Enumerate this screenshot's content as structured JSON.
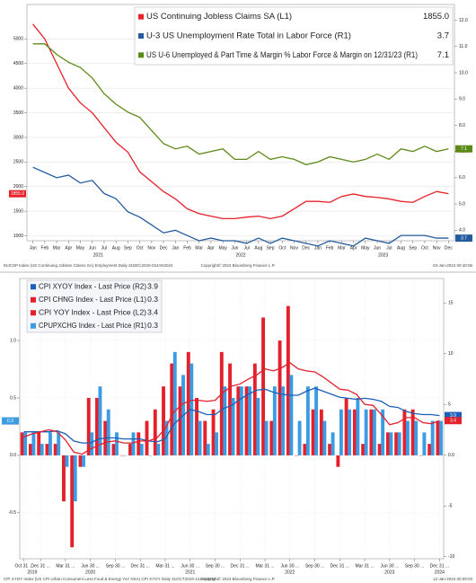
{
  "chart_data": [
    {
      "type": "line",
      "categories": [
        "Jan",
        "Feb",
        "Mar",
        "Apr",
        "May",
        "Jun",
        "Jul",
        "Aug",
        "Sep",
        "Oct",
        "Nov",
        "Dec",
        "Jan",
        "Feb",
        "Mar",
        "Apr",
        "May",
        "Jun",
        "Jul",
        "Aug",
        "Sep",
        "Oct",
        "Nov",
        "Dec",
        "Jan",
        "Feb",
        "Mar",
        "Apr",
        "May",
        "Jun",
        "Jul",
        "Aug",
        "Sep",
        "Oct",
        "Nov",
        "Dec"
      ],
      "year_labels": [
        "2021",
        "2022",
        "2023"
      ],
      "series": [
        {
          "name": "US Continuing Jobless Claims SA (L1)",
          "legend_value": "1855.0",
          "color": "#e8202a",
          "axis": "y",
          "values": [
            5300,
            5000,
            4500,
            4000,
            3700,
            3500,
            3200,
            2900,
            2700,
            2300,
            2100,
            1900,
            1750,
            1550,
            1450,
            1400,
            1350,
            1350,
            1380,
            1400,
            1350,
            1400,
            1550,
            1700,
            1700,
            1680,
            1800,
            1850,
            1800,
            1780,
            1750,
            1700,
            1680,
            1800,
            1900,
            1855
          ]
        },
        {
          "name": "U-3 US Unemployment Rate Total in Labor Force (R1)",
          "legend_value": "3.7",
          "color": "#245b9e",
          "axis": "y2",
          "values": [
            6.4,
            6.2,
            6.0,
            6.1,
            5.8,
            5.9,
            5.4,
            5.2,
            4.7,
            4.5,
            4.2,
            3.9,
            4.0,
            3.8,
            3.6,
            3.7,
            3.6,
            3.6,
            3.5,
            3.7,
            3.5,
            3.7,
            3.6,
            3.5,
            3.4,
            3.6,
            3.5,
            3.4,
            3.7,
            3.6,
            3.5,
            3.8,
            3.8,
            3.8,
            3.7,
            3.7
          ]
        },
        {
          "name": "US U-6 Unemployed & Part Time & Margin % Labor Force & Margin on 12/31/23 (R1)",
          "legend_value": "7.1",
          "color": "#5d8a17",
          "axis": "y2",
          "values": [
            11.1,
            11.1,
            10.7,
            10.4,
            10.2,
            9.8,
            9.2,
            8.8,
            8.5,
            8.3,
            7.8,
            7.3,
            7.1,
            7.2,
            6.9,
            7.0,
            7.1,
            6.7,
            6.7,
            7.0,
            6.7,
            6.8,
            6.7,
            6.5,
            6.6,
            6.8,
            6.7,
            6.6,
            6.7,
            6.9,
            6.7,
            7.1,
            7.0,
            7.2,
            7.0,
            7.1
          ]
        }
      ],
      "ylim": [
        900,
        5700
      ],
      "yticks": [
        1000,
        1500,
        2000,
        2500,
        3000,
        3500,
        4000,
        4500,
        5000
      ],
      "y2lim": [
        3.6,
        12.6
      ],
      "y2ticks": [
        {
          "value": 4,
          "label": "4.0"
        },
        {
          "value": 5,
          "label": "5.0"
        },
        {
          "value": 6,
          "label": "6.0"
        },
        {
          "value": 7,
          "label": "7.0"
        },
        {
          "value": 8,
          "label": "8.0"
        },
        {
          "value": 9,
          "label": "9.0"
        },
        {
          "value": 10,
          "label": "10.0"
        },
        {
          "value": 11,
          "label": "11.0"
        },
        {
          "value": 12,
          "label": "12.0"
        }
      ],
      "grid": true,
      "footer": [
        "INJCSP Index (US Continuing Jobless Claims SA) Employment Daily 31DEC2020-03JAN2024",
        "Copyright© 2024 Bloomberg Finance L.P.",
        "03-Jan-2024 00:40:06"
      ]
    },
    {
      "type": "combo",
      "categories": [
        "Oct 31 ...",
        null,
        "Dec 31 ...",
        null,
        null,
        "Mar 31 ...",
        null,
        null,
        "Jun 30 ...",
        null,
        null,
        "Sep 30 ...",
        null,
        null,
        "Dec 31 ...",
        null,
        null,
        "Mar 31 ...",
        null,
        null,
        "Jun 30 ...",
        null,
        null,
        "Sep 30 ...",
        null,
        null,
        "Dec 31 ...",
        null,
        null,
        "Mar 31 ...",
        null,
        null,
        "Jun 30 ...",
        null,
        null,
        "Sep 30 ...",
        null,
        null,
        "Dec 31 ...",
        null,
        null,
        "Mar 31 ...",
        null,
        null,
        "Jun 30 ...",
        null,
        null,
        "Sep 30 ...",
        null,
        null,
        "Dec 31 ..."
      ],
      "year_labels": [
        "2019",
        "2020",
        "2021",
        "2022",
        "2023",
        "2024"
      ],
      "series": [
        {
          "name": "CPI XYOY Index - Last Price (R2)",
          "legend_value": "3.9",
          "color": "#1c5fb8",
          "axis": "y2",
          "kind": "line",
          "values": [
            2.3,
            2.3,
            2.3,
            2.3,
            2.4,
            2.1,
            1.4,
            1.2,
            1.2,
            1.6,
            1.7,
            1.7,
            1.6,
            1.6,
            1.6,
            1.4,
            1.3,
            1.6,
            3.0,
            3.8,
            4.5,
            4.3,
            4.0,
            4.0,
            4.6,
            4.9,
            5.5,
            6.0,
            6.4,
            6.5,
            6.2,
            6.0,
            5.9,
            5.9,
            6.3,
            6.6,
            6.3,
            6.0,
            5.7,
            5.6,
            5.5,
            5.6,
            5.5,
            5.3,
            4.8,
            4.7,
            4.3,
            4.1,
            4.0,
            4.0,
            3.9
          ]
        },
        {
          "name": "CPI CHNG Index - Last Price (L1)",
          "legend_value": "0.3",
          "color": "#e3202b",
          "axis": "y",
          "kind": "bar",
          "values": [
            0.2,
            0.1,
            0.2,
            0.1,
            0.1,
            -0.4,
            -0.8,
            -0.1,
            0.5,
            0.5,
            0.3,
            0.1,
            0.0,
            0.1,
            0.2,
            0.3,
            0.4,
            0.6,
            0.8,
            0.6,
            0.9,
            0.5,
            0.3,
            0.4,
            0.9,
            0.8,
            0.6,
            0.6,
            0.8,
            1.2,
            0.3,
            1.0,
            1.3,
            0.0,
            0.1,
            0.4,
            0.4,
            0.1,
            -0.1,
            0.5,
            0.4,
            0.1,
            0.4,
            0.1,
            0.2,
            0.2,
            0.4,
            0.4,
            0.0,
            0.1,
            0.3
          ]
        },
        {
          "name": "CPI YOY Index - Last Price (L2)",
          "legend_value": "3.4",
          "color": "#e3202b",
          "axis": "y2",
          "kind": "line",
          "values": [
            1.8,
            2.1,
            2.3,
            2.5,
            2.3,
            1.5,
            0.3,
            0.1,
            0.6,
            1.0,
            1.3,
            1.4,
            1.2,
            1.2,
            1.4,
            1.4,
            1.7,
            2.6,
            4.2,
            5.0,
            5.4,
            5.4,
            5.3,
            5.4,
            6.2,
            6.8,
            7.0,
            7.5,
            7.9,
            8.5,
            8.3,
            8.6,
            9.1,
            8.5,
            8.3,
            8.2,
            7.7,
            7.1,
            6.5,
            6.4,
            6.0,
            5.0,
            4.9,
            4.0,
            3.0,
            3.2,
            3.7,
            3.7,
            3.2,
            3.1,
            3.4
          ]
        },
        {
          "name": "CPUPXCHG Index - Last Price (R1)",
          "legend_value": "0.3",
          "color": "#3b9be3",
          "axis": "y",
          "kind": "bar",
          "values": [
            0.2,
            0.2,
            0.1,
            0.2,
            0.2,
            -0.1,
            -0.4,
            -0.1,
            0.2,
            0.6,
            0.4,
            0.2,
            0.0,
            0.2,
            0.1,
            0.0,
            0.1,
            0.3,
            0.9,
            0.7,
            0.8,
            0.3,
            0.1,
            0.2,
            0.6,
            0.5,
            0.6,
            0.6,
            0.5,
            0.3,
            0.6,
            0.6,
            0.7,
            0.3,
            0.6,
            0.6,
            0.3,
            0.2,
            0.4,
            0.4,
            0.5,
            0.4,
            0.4,
            0.4,
            0.2,
            0.2,
            0.3,
            0.3,
            0.2,
            0.3,
            0.3
          ]
        }
      ],
      "ylim": [
        -0.9,
        1.54
      ],
      "yticks": [
        -0.5,
        {
          "value": 0,
          "label": "0.0"
        },
        0.5,
        {
          "value": 1,
          "label": "1.0"
        }
      ],
      "y2lim": [
        -10.2,
        17.4
      ],
      "y2ticks": [
        -10,
        -5,
        {
          "value": 0,
          "label": "0.0"
        },
        5,
        10,
        15
      ],
      "grid": true,
      "footer": [
        "CPI XYOY Index (US CPI Urban Consumers Less Food & Energy YoY NSA) CPI XYOY Daily 31OCT2019-12JAN2024",
        "Copyright© 2024 Bloomberg Finance L.P.",
        "12-Jan-2024 00:09:03"
      ]
    }
  ]
}
